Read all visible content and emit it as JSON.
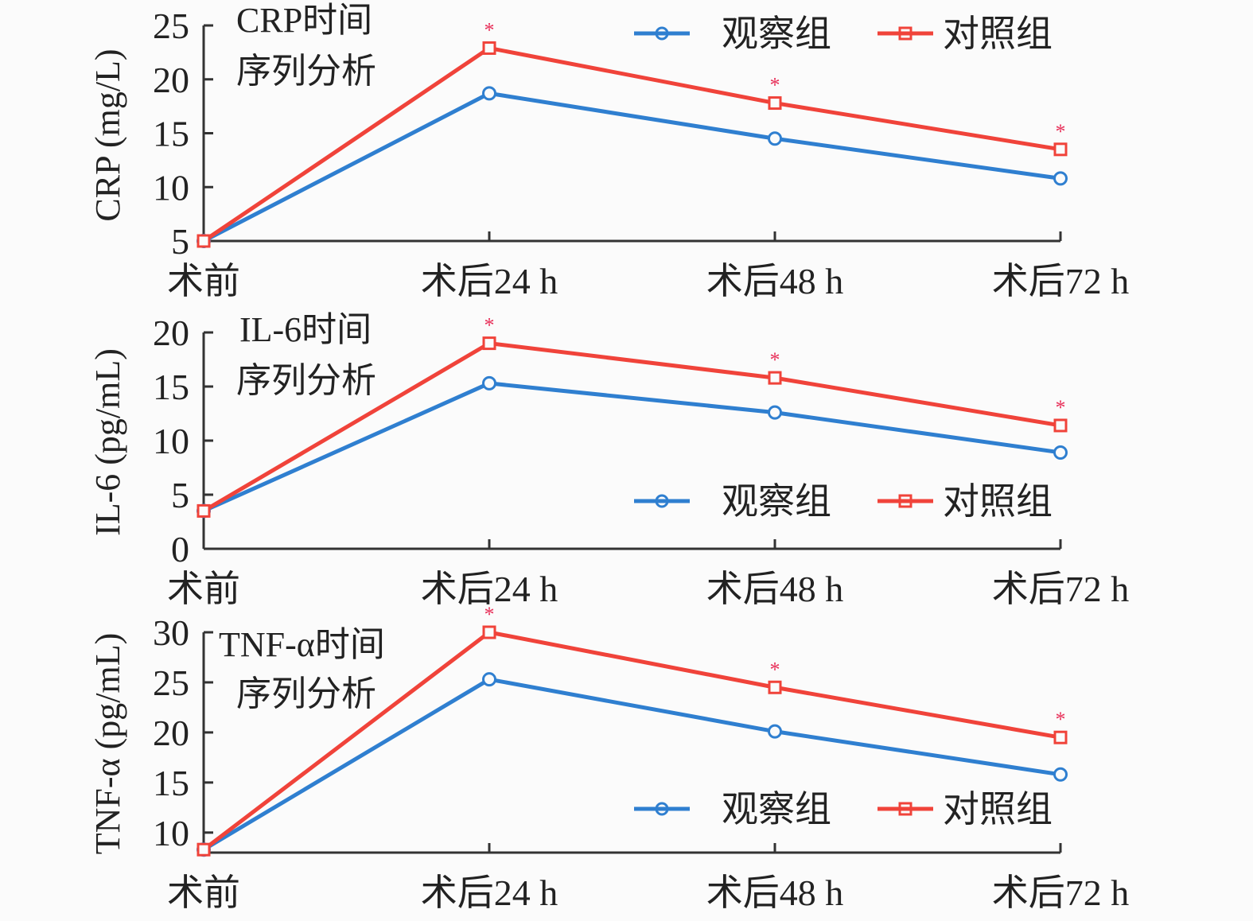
{
  "colors": {
    "observation": "#2f7fd0",
    "control": "#f0433a",
    "axis": "#333333",
    "significance": "#e8315a"
  },
  "legend": {
    "observation_label": "观察组",
    "control_label": "对照组"
  },
  "chart_data": [
    {
      "type": "line",
      "title": "CRP时间序列分析",
      "title_lines": [
        "CRP时间",
        "序列分析"
      ],
      "ylabel": "CRP (mg/L)",
      "categories": [
        "术前",
        "术后24 h",
        "术后48 h",
        "术后72 h"
      ],
      "ylim": [
        5,
        25
      ],
      "yticks": [
        5,
        10,
        15,
        20,
        25
      ],
      "legend_position": "top-right",
      "series": [
        {
          "name": "观察组",
          "marker": "circle",
          "values": [
            5.0,
            18.7,
            14.5,
            10.8
          ]
        },
        {
          "name": "对照组",
          "marker": "square",
          "values": [
            5.0,
            22.9,
            17.8,
            13.5
          ]
        }
      ],
      "significance": [
        "",
        "*",
        "*",
        "*"
      ]
    },
    {
      "type": "line",
      "title": "IL-6时间序列分析",
      "title_lines": [
        "IL-6时间",
        "序列分析"
      ],
      "ylabel": "IL-6 (pg/mL)",
      "categories": [
        "术前",
        "术后24 h",
        "术后48 h",
        "术后72 h"
      ],
      "ylim": [
        0,
        20
      ],
      "yticks": [
        0,
        5,
        10,
        15,
        20
      ],
      "legend_position": "bottom-right",
      "series": [
        {
          "name": "观察组",
          "marker": "circle",
          "values": [
            3.5,
            15.3,
            12.6,
            8.9
          ]
        },
        {
          "name": "对照组",
          "marker": "square",
          "values": [
            3.5,
            19.0,
            15.8,
            11.4
          ]
        }
      ],
      "significance": [
        "",
        "*",
        "*",
        "*"
      ]
    },
    {
      "type": "line",
      "title": "TNF-α时间序列分析",
      "title_lines": [
        "TNF-α时间",
        "序列分析"
      ],
      "ylabel": "TNF-α (pg/mL)",
      "categories": [
        "术前",
        "术后24 h",
        "术后48 h",
        "术后72 h"
      ],
      "ylim": [
        8,
        30
      ],
      "yticks": [
        10,
        15,
        20,
        25,
        30
      ],
      "legend_position": "bottom-right",
      "series": [
        {
          "name": "观察组",
          "marker": "circle",
          "values": [
            8.3,
            25.3,
            20.1,
            15.8
          ]
        },
        {
          "name": "对照组",
          "marker": "square",
          "values": [
            8.3,
            30.0,
            24.5,
            19.5
          ]
        }
      ],
      "significance": [
        "",
        "*",
        "*",
        "*"
      ]
    }
  ]
}
